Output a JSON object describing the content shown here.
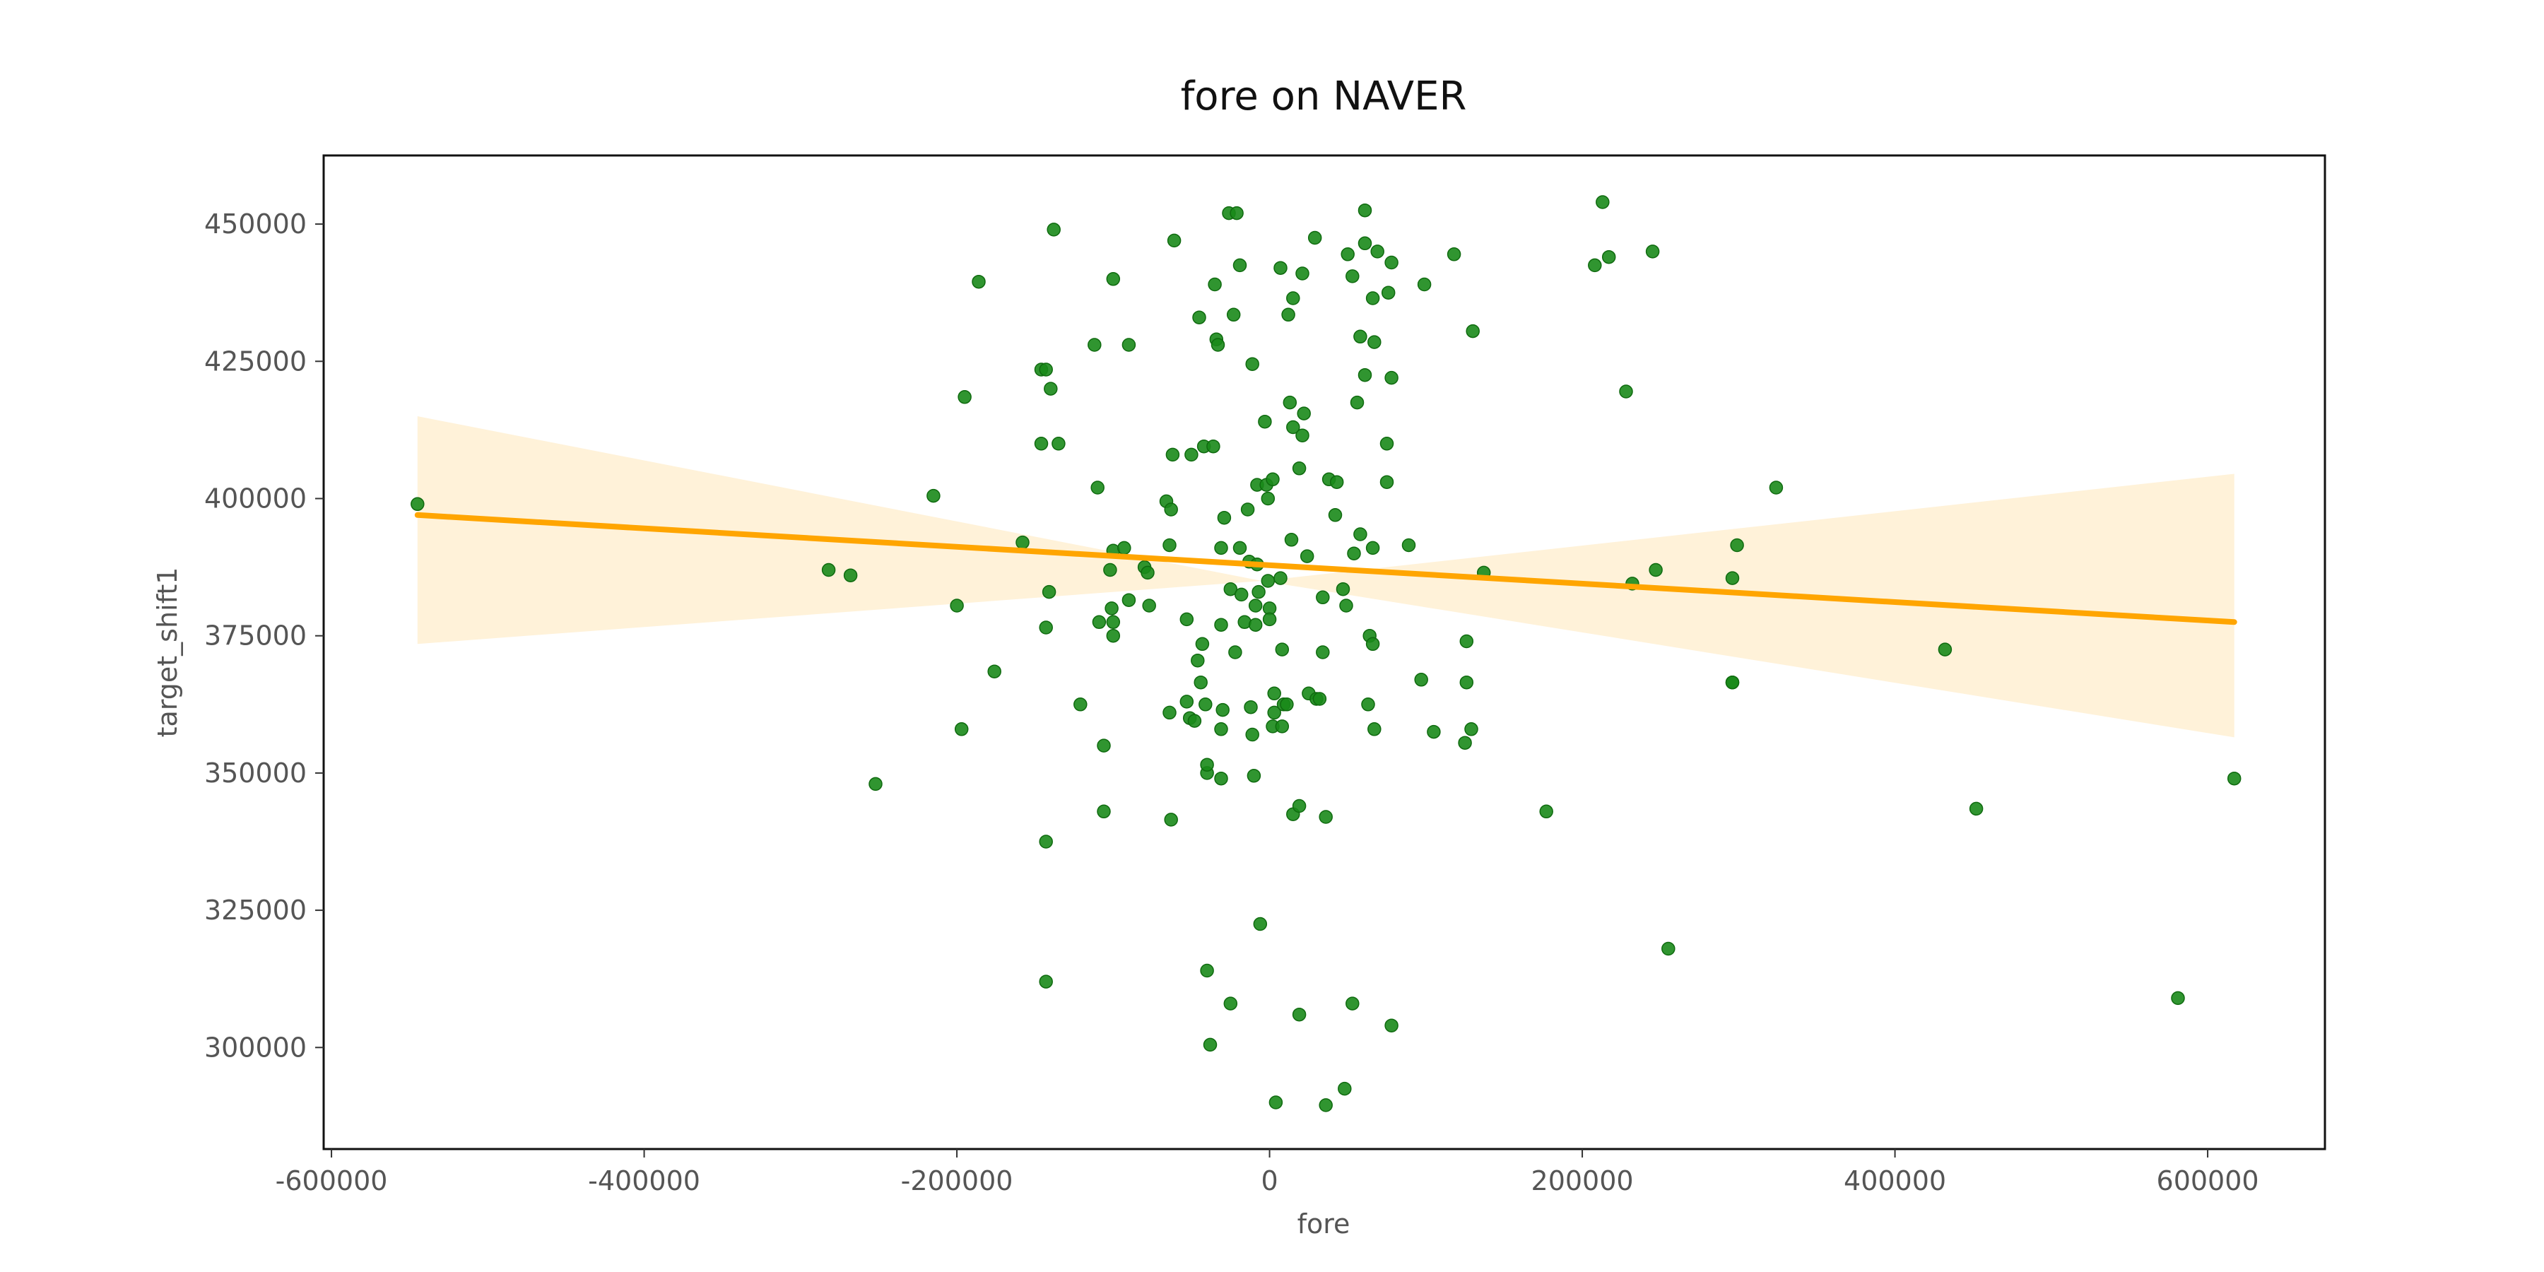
{
  "chart_data": {
    "type": "scatter",
    "title": "fore on NAVER",
    "xlabel": "fore",
    "ylabel": "target_shift1",
    "xlim": [
      -605000,
      675000
    ],
    "ylim": [
      281500,
      462500
    ],
    "xticks": [
      -600000,
      -400000,
      -200000,
      0,
      200000,
      400000,
      600000
    ],
    "xtick_labels": [
      "-600000",
      "-400000",
      "-200000",
      "0",
      "200000",
      "400000",
      "600000"
    ],
    "yticks": [
      300000,
      325000,
      350000,
      375000,
      400000,
      425000,
      450000
    ],
    "ytick_labels": [
      "300000",
      "325000",
      "350000",
      "375000",
      "400000",
      "425000",
      "450000"
    ],
    "grid": false,
    "colors": {
      "points": "#1a8a1a",
      "regression_line": "#ffa500",
      "confidence_band": "#ffa500"
    },
    "regression": {
      "x": [
        -545000,
        617000
      ],
      "y": [
        397000,
        377500
      ],
      "ci_lower": [
        373500,
        356500
      ],
      "ci_upper": [
        415000,
        404500
      ],
      "ci_center": [
        -5000,
        385000
      ]
    },
    "points": [
      [
        -545000,
        399000
      ],
      [
        -282000,
        387000
      ],
      [
        -268000,
        386000
      ],
      [
        -252000,
        348000
      ],
      [
        -215000,
        400500
      ],
      [
        -200000,
        380500
      ],
      [
        -195000,
        418500
      ],
      [
        -197000,
        358000
      ],
      [
        -186000,
        439500
      ],
      [
        -176000,
        368500
      ],
      [
        -158000,
        392000
      ],
      [
        -146000,
        423500
      ],
      [
        -143000,
        423500
      ],
      [
        -146000,
        410000
      ],
      [
        -140000,
        420000
      ],
      [
        -138000,
        449000
      ],
      [
        -135000,
        410000
      ],
      [
        -141000,
        383000
      ],
      [
        -143000,
        376500
      ],
      [
        -143000,
        337500
      ],
      [
        -143000,
        312000
      ],
      [
        -121000,
        362500
      ],
      [
        -112000,
        428000
      ],
      [
        -110000,
        402000
      ],
      [
        -109000,
        377500
      ],
      [
        -106000,
        355000
      ],
      [
        -106000,
        343000
      ],
      [
        -102000,
        387000
      ],
      [
        -101000,
        380000
      ],
      [
        -100000,
        375000
      ],
      [
        -100000,
        377500
      ],
      [
        -100000,
        390500
      ],
      [
        -100000,
        440000
      ],
      [
        -93000,
        391000
      ],
      [
        -90000,
        428000
      ],
      [
        -90000,
        381500
      ],
      [
        -80000,
        387500
      ],
      [
        -78000,
        386500
      ],
      [
        -77000,
        380500
      ],
      [
        -66000,
        399500
      ],
      [
        -64000,
        391500
      ],
      [
        -64000,
        361000
      ],
      [
        -63000,
        398000
      ],
      [
        -63000,
        341500
      ],
      [
        -62000,
        408000
      ],
      [
        -61000,
        447000
      ],
      [
        -53000,
        378000
      ],
      [
        -53000,
        363000
      ],
      [
        -51000,
        360000
      ],
      [
        -50000,
        408000
      ],
      [
        -48000,
        359500
      ],
      [
        -46000,
        370500
      ],
      [
        -45000,
        433000
      ],
      [
        -44000,
        366500
      ],
      [
        -43000,
        373500
      ],
      [
        -42000,
        409500
      ],
      [
        -41000,
        362500
      ],
      [
        -40000,
        350000
      ],
      [
        -40000,
        351500
      ],
      [
        -40000,
        314000
      ],
      [
        -38000,
        300500
      ],
      [
        -36000,
        409500
      ],
      [
        -35000,
        439000
      ],
      [
        -34000,
        429000
      ],
      [
        -33000,
        428000
      ],
      [
        -31000,
        391000
      ],
      [
        -31000,
        377000
      ],
      [
        -31000,
        358000
      ],
      [
        -31000,
        349000
      ],
      [
        -30000,
        361500
      ],
      [
        -29000,
        396500
      ],
      [
        -26000,
        452000
      ],
      [
        -25000,
        383500
      ],
      [
        -25000,
        308000
      ],
      [
        -23000,
        433500
      ],
      [
        -22000,
        372000
      ],
      [
        -21000,
        452000
      ],
      [
        -19000,
        391000
      ],
      [
        -19000,
        442500
      ],
      [
        -18000,
        382500
      ],
      [
        -16000,
        377500
      ],
      [
        -14000,
        398000
      ],
      [
        -13000,
        388500
      ],
      [
        -12000,
        362000
      ],
      [
        -11000,
        424500
      ],
      [
        -11000,
        357000
      ],
      [
        -10000,
        349500
      ],
      [
        -9000,
        380500
      ],
      [
        -9000,
        377000
      ],
      [
        -8000,
        388000
      ],
      [
        -8000,
        402500
      ],
      [
        -7000,
        383000
      ],
      [
        -6000,
        322500
      ],
      [
        -3000,
        414000
      ],
      [
        -2000,
        402500
      ],
      [
        -1000,
        400000
      ],
      [
        -1000,
        385000
      ],
      [
        0,
        380000
      ],
      [
        0,
        378000
      ],
      [
        2000,
        403500
      ],
      [
        3000,
        364500
      ],
      [
        3000,
        361000
      ],
      [
        2000,
        358500
      ],
      [
        4000,
        290000
      ],
      [
        7000,
        385500
      ],
      [
        7000,
        442000
      ],
      [
        8000,
        372500
      ],
      [
        8000,
        358500
      ],
      [
        9000,
        362500
      ],
      [
        11000,
        362500
      ],
      [
        12000,
        433500
      ],
      [
        13000,
        417500
      ],
      [
        14000,
        392500
      ],
      [
        15000,
        436500
      ],
      [
        15000,
        413000
      ],
      [
        15000,
        342500
      ],
      [
        19000,
        405500
      ],
      [
        19000,
        306000
      ],
      [
        19000,
        344000
      ],
      [
        21000,
        441000
      ],
      [
        21000,
        411500
      ],
      [
        22000,
        415500
      ],
      [
        24000,
        389500
      ],
      [
        25000,
        364500
      ],
      [
        29000,
        447500
      ],
      [
        30000,
        363500
      ],
      [
        32000,
        363500
      ],
      [
        34000,
        382000
      ],
      [
        34000,
        372000
      ],
      [
        36000,
        342000
      ],
      [
        36000,
        289500
      ],
      [
        38000,
        403500
      ],
      [
        42000,
        397000
      ],
      [
        43000,
        403000
      ],
      [
        47000,
        383500
      ],
      [
        48000,
        292500
      ],
      [
        49000,
        380500
      ],
      [
        50000,
        444500
      ],
      [
        53000,
        440500
      ],
      [
        54000,
        390000
      ],
      [
        53000,
        308000
      ],
      [
        56000,
        417500
      ],
      [
        58000,
        393500
      ],
      [
        58000,
        429500
      ],
      [
        61000,
        446500
      ],
      [
        61000,
        422500
      ],
      [
        61000,
        452500
      ],
      [
        63000,
        362500
      ],
      [
        64000,
        375000
      ],
      [
        66000,
        373500
      ],
      [
        66000,
        391000
      ],
      [
        66000,
        436500
      ],
      [
        67000,
        428500
      ],
      [
        67000,
        358000
      ],
      [
        69000,
        445000
      ],
      [
        75000,
        403000
      ],
      [
        75000,
        410000
      ],
      [
        76000,
        437500
      ],
      [
        78000,
        443000
      ],
      [
        78000,
        422000
      ],
      [
        78000,
        304000
      ],
      [
        89000,
        391500
      ],
      [
        97000,
        367000
      ],
      [
        99000,
        439000
      ],
      [
        105000,
        357500
      ],
      [
        118000,
        444500
      ],
      [
        125000,
        355500
      ],
      [
        126000,
        366500
      ],
      [
        126000,
        374000
      ],
      [
        129000,
        358000
      ],
      [
        130000,
        430500
      ],
      [
        137000,
        386500
      ],
      [
        177000,
        343000
      ],
      [
        208000,
        442500
      ],
      [
        213000,
        454000
      ],
      [
        217000,
        444000
      ],
      [
        228000,
        419500
      ],
      [
        232000,
        384500
      ],
      [
        245000,
        445000
      ],
      [
        247000,
        387000
      ],
      [
        255000,
        318000
      ],
      [
        296000,
        385500
      ],
      [
        296000,
        366500
      ],
      [
        296000,
        366500
      ],
      [
        299000,
        391500
      ],
      [
        324000,
        402000
      ],
      [
        432000,
        372500
      ],
      [
        452000,
        343500
      ],
      [
        581000,
        309000
      ],
      [
        617000,
        349000
      ]
    ]
  }
}
